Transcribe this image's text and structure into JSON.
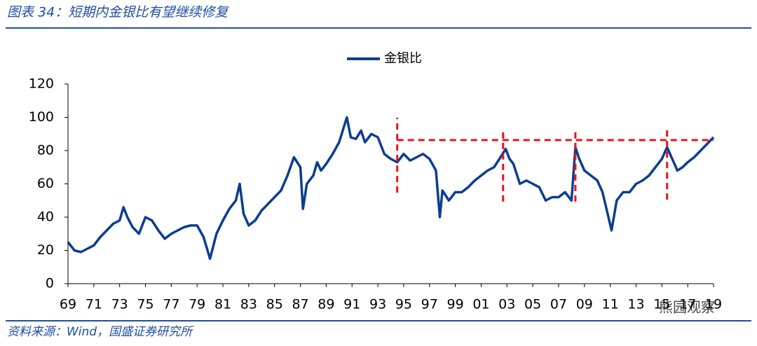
{
  "header": {
    "title": "图表 34：短期内金银比有望继续修复"
  },
  "chart_data": {
    "type": "line",
    "x": [
      1969,
      1969.5,
      1970,
      1970.5,
      1971,
      1971.5,
      1972,
      1972.5,
      1973,
      1973.3,
      1973.6,
      1974,
      1974.5,
      1975,
      1975.5,
      1976,
      1976.5,
      1977,
      1977.5,
      1978,
      1978.5,
      1979,
      1979.5,
      1980,
      1980.5,
      1981,
      1981.5,
      1982,
      1982.3,
      1982.6,
      1983,
      1983.5,
      1984,
      1984.5,
      1985,
      1985.5,
      1986,
      1986.5,
      1987,
      1987.2,
      1987.5,
      1988,
      1988.3,
      1988.6,
      1989,
      1989.5,
      1990,
      1990.6,
      1990.9,
      1991.3,
      1991.7,
      1992,
      1992.5,
      1993,
      1993.5,
      1994,
      1994.5,
      1995,
      1995.5,
      1996,
      1996.5,
      1997,
      1997.5,
      1997.8,
      1998,
      1998.5,
      1999,
      1999.5,
      2000,
      2000.5,
      2001,
      2001.5,
      2002,
      2002.5,
      2002.9,
      2003.2,
      2003.5,
      2004,
      2004.5,
      2005,
      2005.5,
      2006,
      2006.5,
      2007,
      2007.5,
      2008,
      2008.3,
      2008.6,
      2009,
      2009.5,
      2010,
      2010.4,
      2010.8,
      2011.1,
      2011.5,
      2012,
      2012.5,
      2013,
      2013.5,
      2014,
      2014.5,
      2015,
      2015.4,
      2015.8,
      2016.2,
      2016.6,
      2017,
      2017.5,
      2018,
      2018.5,
      2019
    ],
    "series": [
      {
        "name": "金银比",
        "color": "#0d3d91",
        "values": [
          25,
          20,
          19,
          21,
          23,
          28,
          32,
          36,
          38,
          46,
          40,
          34,
          30,
          40,
          38,
          32,
          27,
          30,
          32,
          34,
          35,
          35,
          28,
          15,
          30,
          38,
          45,
          50,
          60,
          42,
          35,
          38,
          44,
          48,
          52,
          56,
          65,
          76,
          70,
          45,
          60,
          65,
          73,
          68,
          72,
          78,
          85,
          100,
          88,
          87,
          92,
          85,
          90,
          88,
          78,
          75,
          73,
          78,
          74,
          76,
          78,
          75,
          68,
          40,
          56,
          50,
          55,
          55,
          58,
          62,
          65,
          68,
          70,
          76,
          81,
          75,
          72,
          60,
          62,
          60,
          58,
          50,
          52,
          52,
          55,
          50,
          82,
          75,
          68,
          65,
          62,
          55,
          42,
          32,
          50,
          55,
          55,
          60,
          62,
          65,
          70,
          75,
          82,
          75,
          68,
          70,
          73,
          76,
          80,
          84,
          88
        ]
      }
    ],
    "xlim": [
      1969,
      2019
    ],
    "xticks": [
      {
        "value": 1969,
        "label": "69"
      },
      {
        "value": 1971,
        "label": "71"
      },
      {
        "value": 1973,
        "label": "73"
      },
      {
        "value": 1975,
        "label": "75"
      },
      {
        "value": 1977,
        "label": "77"
      },
      {
        "value": 1979,
        "label": "79"
      },
      {
        "value": 1981,
        "label": "81"
      },
      {
        "value": 1983,
        "label": "83"
      },
      {
        "value": 1985,
        "label": "85"
      },
      {
        "value": 1987,
        "label": "87"
      },
      {
        "value": 1989,
        "label": "89"
      },
      {
        "value": 1991,
        "label": "91"
      },
      {
        "value": 1993,
        "label": "93"
      },
      {
        "value": 1995,
        "label": "95"
      },
      {
        "value": 1997,
        "label": "97"
      },
      {
        "value": 1999,
        "label": "99"
      },
      {
        "value": 2001,
        "label": "01"
      },
      {
        "value": 2003,
        "label": "03"
      },
      {
        "value": 2005,
        "label": "05"
      },
      {
        "value": 2007,
        "label": "07"
      },
      {
        "value": 2009,
        "label": "09"
      },
      {
        "value": 2011,
        "label": "11"
      },
      {
        "value": 2013,
        "label": "13"
      },
      {
        "value": 2015,
        "label": "15"
      },
      {
        "value": 2017,
        "label": "17"
      },
      {
        "value": 2019,
        "label": "19"
      }
    ],
    "ylim": [
      0,
      120
    ],
    "yticks": [
      0,
      20,
      40,
      60,
      80,
      100,
      120
    ],
    "legend": "top",
    "reference_lines": {
      "color": "#e8141c",
      "horizontal": {
        "y": 86.3,
        "x": [
          1994.5,
          2019
        ]
      },
      "vertical": [
        {
          "x": 1994.5,
          "y": [
            54.7,
            99.8
          ]
        },
        {
          "x": 2002.7,
          "y": [
            49.3,
            93.5
          ]
        },
        {
          "x": 2008.3,
          "y": [
            49.3,
            93.5
          ]
        },
        {
          "x": 2015.4,
          "y": [
            50.5,
            94.7
          ]
        }
      ]
    }
  },
  "footer": {
    "source": "资料来源：Wind，国盛证券研究所",
    "watermark": "熊园观察"
  }
}
